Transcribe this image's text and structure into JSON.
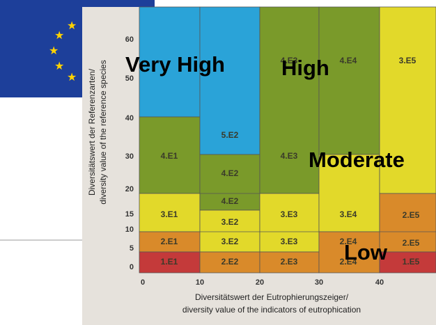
{
  "overlay_labels": [
    "Very High",
    "High",
    "Moderate",
    "Low"
  ],
  "y_axis_title": [
    "Diversitätswert der Referenzarten/",
    "diversity value of the reference species"
  ],
  "x_axis_title": [
    "Diversitätswert der Eutrophierungszeiger/",
    "diversity value of the indicators of eutrophication"
  ],
  "y_ticks": [
    "60",
    "50",
    "40",
    "30",
    "20",
    "15",
    "10",
    "5",
    "0"
  ],
  "x_ticks": [
    "0",
    "10",
    "20",
    "30",
    "40"
  ],
  "cells": [
    "4.E1",
    "3.E1",
    "2.E1",
    "1.E1",
    "5.E2",
    "4.E2",
    "4.E2",
    "3.E2",
    "3.E2",
    "2.E2",
    "4.E3",
    "4.E3",
    "3.E3",
    "3.E3",
    "2.E3",
    "4.E4",
    "3.E4",
    "2.E4",
    "2.E4",
    "3.E5",
    "2.E5",
    "2.E5",
    "1.E5"
  ]
}
